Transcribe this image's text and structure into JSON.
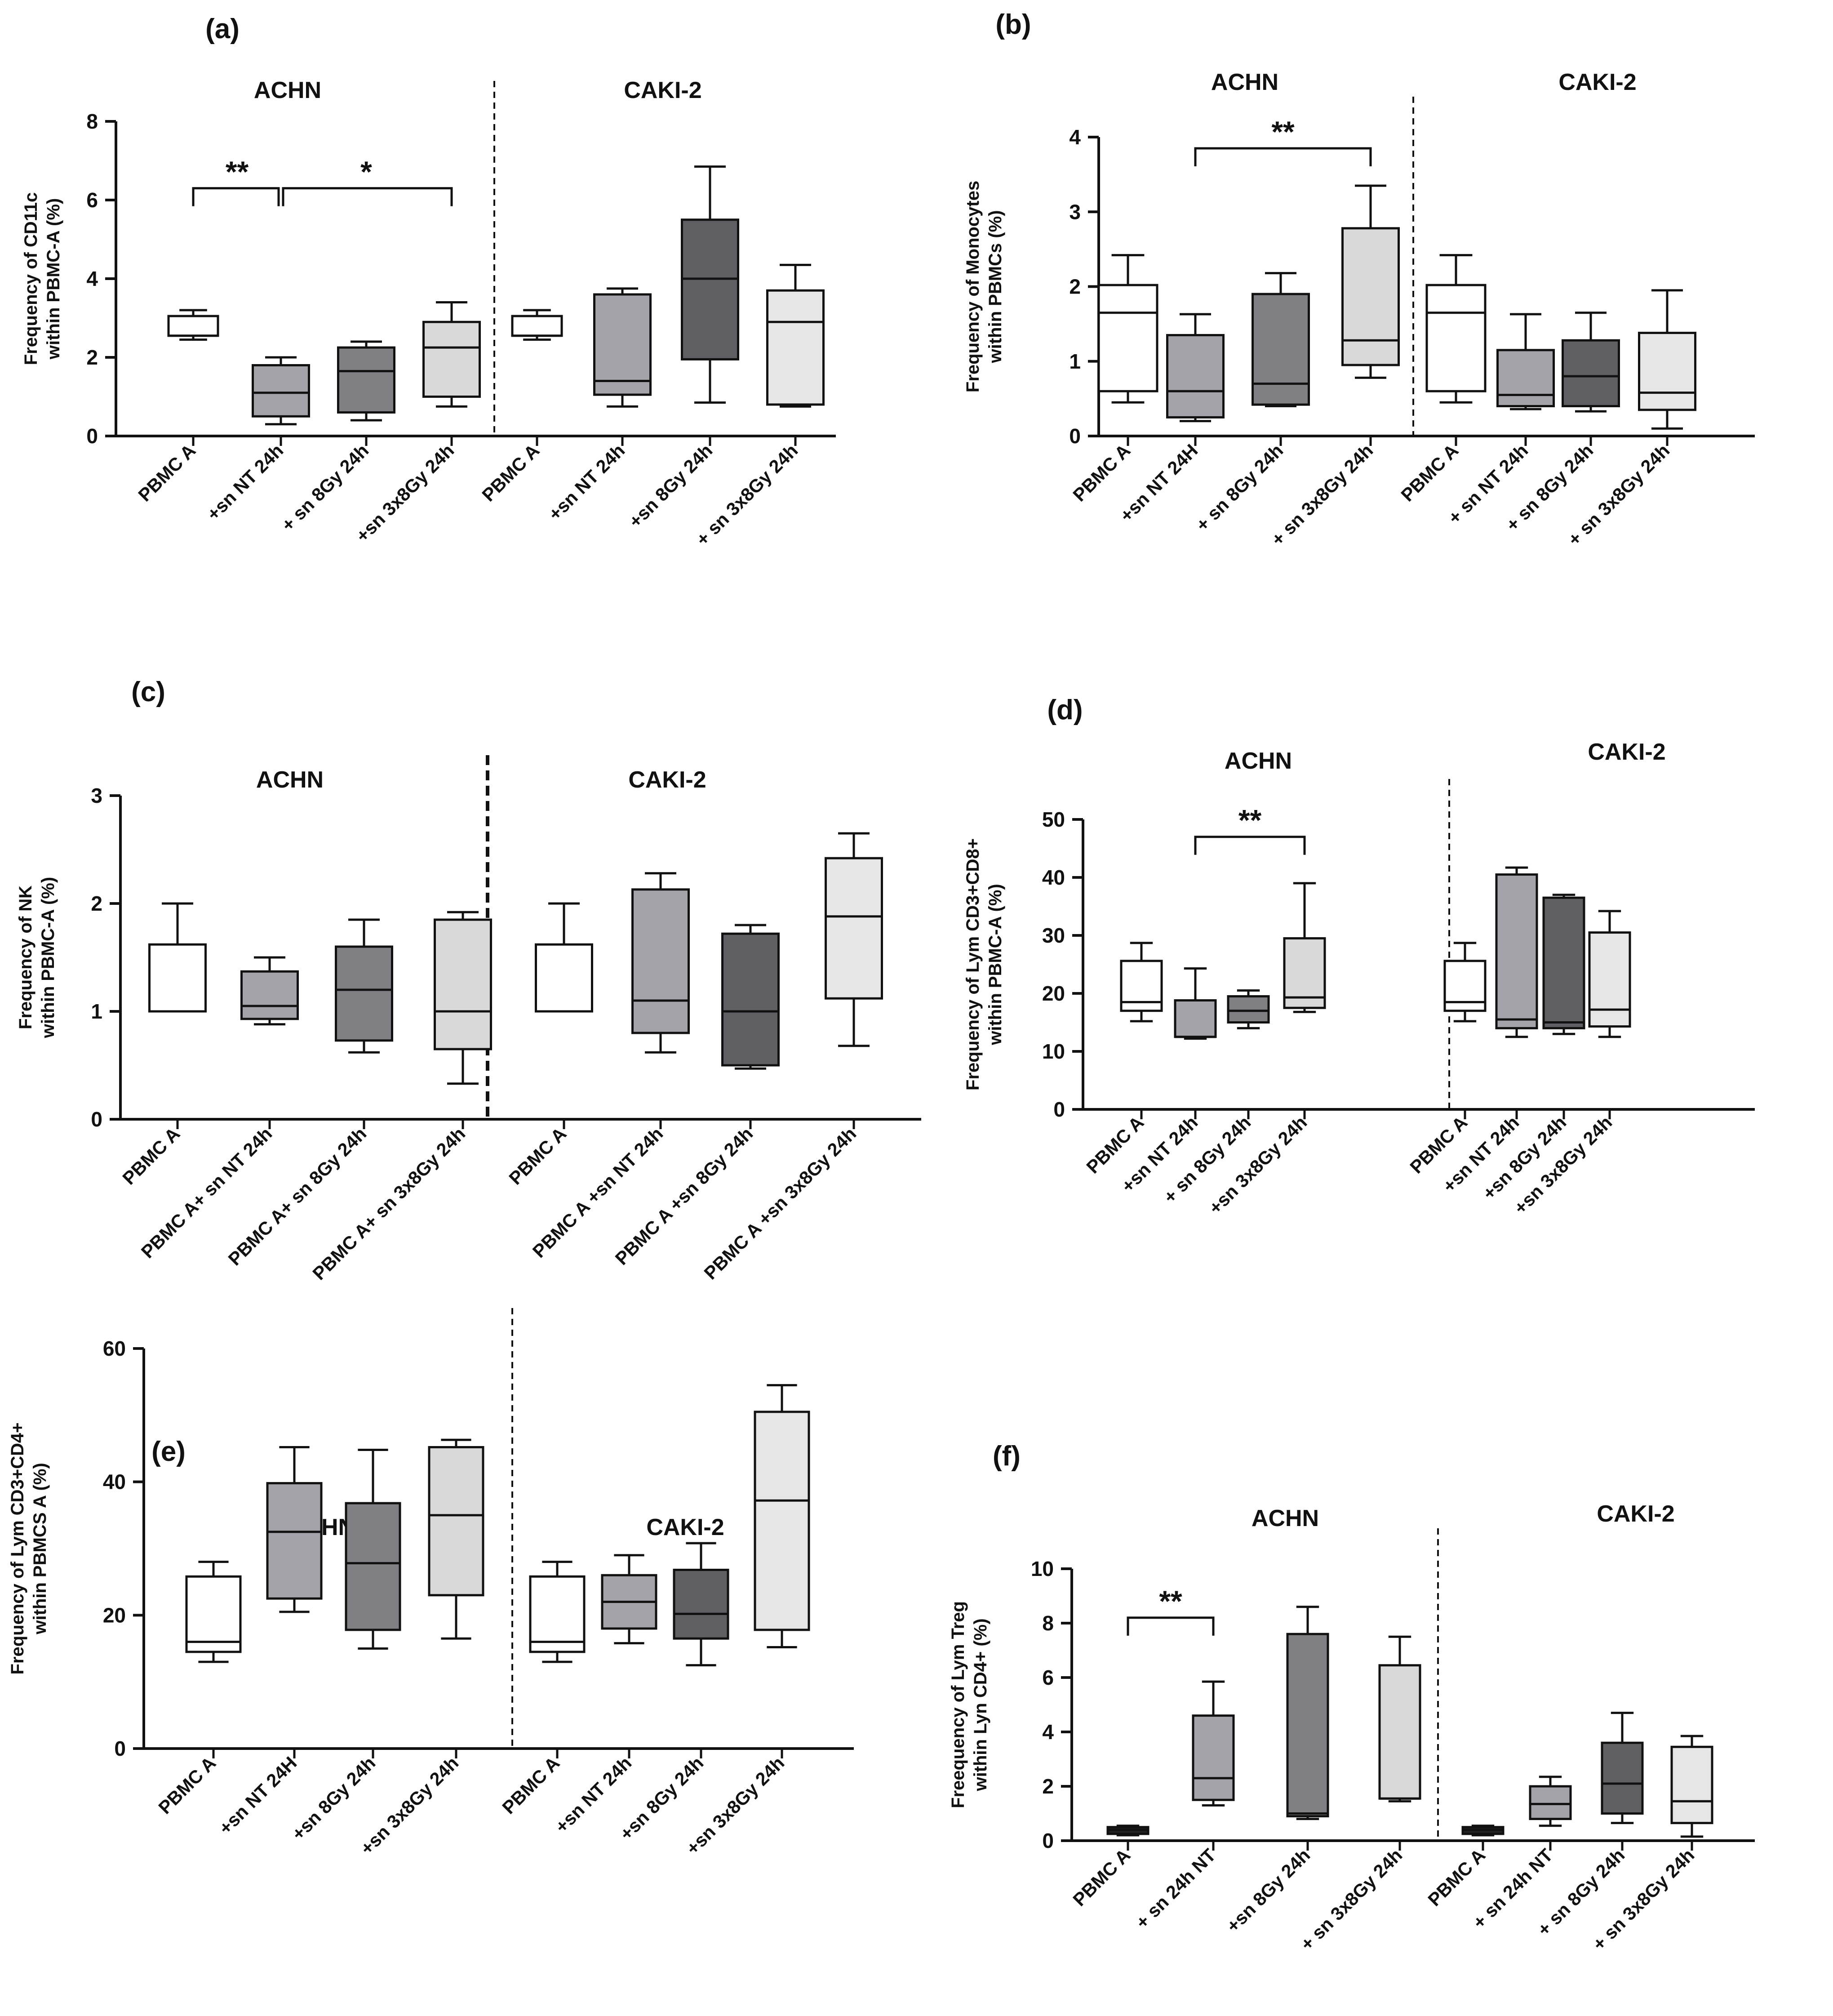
{
  "panels": [
    {
      "panel_label": "(a)",
      "chart_data": {
        "type": "box",
        "title": "",
        "ylabel": "Frequency of CD11c within PBMC-A (%)",
        "ylim": [
          0,
          8
        ],
        "yticks": [
          "0",
          "2",
          "4",
          "6",
          "8"
        ],
        "groups": [
          "ACHN",
          "CAKI-2"
        ],
        "categories": [
          "PBMC A",
          "+sn NT 24h",
          "+ sn 8Gy 24h",
          "+sn  3x8Gy 24h",
          "PBMC A",
          "+sn  NT 24h",
          "+sn 8Gy 24h",
          "+ sn 3x8Gy 24h"
        ],
        "series": [
          {
            "name": "PBMC A",
            "min": 2.45,
            "q1": 2.55,
            "median": 2.55,
            "q3": 3.05,
            "max": 3.2,
            "color": "#ffffff"
          },
          {
            "name": "+sn NT 24h",
            "min": 0.3,
            "q1": 0.5,
            "median": 1.1,
            "q3": 1.8,
            "max": 2.0,
            "color": "#a3a3a9"
          },
          {
            "name": "+ sn 8Gy 24h",
            "min": 0.4,
            "q1": 0.6,
            "median": 1.65,
            "q3": 2.25,
            "max": 2.4,
            "color": "#7f7f84"
          },
          {
            "name": "+sn  3x8Gy 24h",
            "min": 0.75,
            "q1": 1.0,
            "median": 2.25,
            "q3": 2.9,
            "max": 3.4,
            "color": "#d9d9d9"
          },
          {
            "name": "PBMC A",
            "min": 2.45,
            "q1": 2.55,
            "median": 2.55,
            "q3": 3.05,
            "max": 3.2,
            "color": "#ffffff"
          },
          {
            "name": "+sn  NT 24h",
            "min": 0.75,
            "q1": 1.05,
            "median": 1.4,
            "q3": 3.6,
            "max": 3.75,
            "color": "#a3a3a9"
          },
          {
            "name": "+sn 8Gy 24h",
            "min": 0.85,
            "q1": 1.95,
            "median": 4.0,
            "q3": 5.5,
            "max": 6.85,
            "color": "#5f5f63"
          },
          {
            "name": "+ sn 3x8Gy 24h",
            "min": 0.75,
            "q1": 0.8,
            "median": 2.9,
            "q3": 3.7,
            "max": 4.35,
            "color": "#e6e6e6"
          }
        ],
        "significance": [
          {
            "from": 0,
            "to": 1,
            "label": "**",
            "y": 6.3
          },
          {
            "from": 1,
            "to": 3,
            "label": "*",
            "y": 6.3
          }
        ]
      }
    },
    {
      "panel_label": "(b)",
      "chart_data": {
        "type": "box",
        "title": "",
        "ylabel": "Frequency of  Monocytes within PBMCs (%)",
        "ylim": [
          0,
          4
        ],
        "yticks": [
          "0",
          "1",
          "2",
          "3",
          "4"
        ],
        "groups": [
          "ACHN",
          "CAKI-2"
        ],
        "categories": [
          "PBMC A",
          "+sn NT 24H",
          "+ sn 8Gy 24h",
          "+ sn 3x8Gy 24h",
          "PBMC A",
          "+ sn NT 24h",
          "+ sn 8Gy 24h",
          "+ sn  3x8Gy 24h"
        ],
        "series": [
          {
            "name": "PBMC A",
            "min": 0.45,
            "q1": 0.6,
            "median": 1.65,
            "q3": 2.02,
            "max": 2.42,
            "color": "#ffffff"
          },
          {
            "name": "+sn NT 24H",
            "min": 0.2,
            "q1": 0.25,
            "median": 0.6,
            "q3": 1.35,
            "max": 1.63,
            "color": "#a3a3a9"
          },
          {
            "name": "+ sn 8Gy 24h",
            "min": 0.4,
            "q1": 0.42,
            "median": 0.7,
            "q3": 1.9,
            "max": 2.18,
            "color": "#7f7f84"
          },
          {
            "name": "+ sn 3x8Gy 24h",
            "min": 0.78,
            "q1": 0.95,
            "median": 1.28,
            "q3": 2.78,
            "max": 3.35,
            "color": "#d9d9d9"
          },
          {
            "name": "PBMC A",
            "min": 0.45,
            "q1": 0.6,
            "median": 1.65,
            "q3": 2.02,
            "max": 2.42,
            "color": "#ffffff"
          },
          {
            "name": "+ sn NT 24h",
            "min": 0.36,
            "q1": 0.4,
            "median": 0.55,
            "q3": 1.15,
            "max": 1.63,
            "color": "#a3a3a9"
          },
          {
            "name": "+ sn 8Gy 24h",
            "min": 0.33,
            "q1": 0.4,
            "median": 0.8,
            "q3": 1.28,
            "max": 1.65,
            "color": "#5f5f63"
          },
          {
            "name": "+ sn  3x8Gy 24h",
            "min": 0.1,
            "q1": 0.35,
            "median": 0.58,
            "q3": 1.38,
            "max": 1.95,
            "color": "#e6e6e6"
          }
        ],
        "significance": [
          {
            "from": 1,
            "to": 3,
            "label": "**",
            "y": 3.85
          }
        ]
      }
    },
    {
      "panel_label": "(c)",
      "chart_data": {
        "type": "box",
        "title": "",
        "ylabel": "Frequency of NK within  PBMC-A (%)",
        "ylim": [
          0,
          3
        ],
        "yticks": [
          "0",
          "1",
          "2",
          "3"
        ],
        "groups": [
          "ACHN",
          "CAKI-2"
        ],
        "categories": [
          "PBMC A",
          "PBMC A+ sn NT 24h",
          "PBMC A+ sn 8Gy 24h",
          "PBMC A+ sn 3x8Gy 24h",
          "PBMC A",
          "PBMC A +sn NT 24h",
          "PBMC A +sn 8Gy 24h",
          "PBMC A +sn 3x8Gy 24h"
        ],
        "series": [
          {
            "name": "PBMC A",
            "min": 1.0,
            "q1": 1.0,
            "median": 1.0,
            "q3": 1.62,
            "max": 2.0,
            "color": "#ffffff"
          },
          {
            "name": "PBMC A+ sn NT 24h",
            "min": 0.88,
            "q1": 0.93,
            "median": 1.05,
            "q3": 1.37,
            "max": 1.5,
            "color": "#a3a3a9"
          },
          {
            "name": "PBMC A+ sn 8Gy 24h",
            "min": 0.62,
            "q1": 0.73,
            "median": 1.2,
            "q3": 1.6,
            "max": 1.85,
            "color": "#7f7f84"
          },
          {
            "name": "PBMC A+ sn 3x8Gy 24h",
            "min": 0.33,
            "q1": 0.65,
            "median": 1.0,
            "q3": 1.85,
            "max": 1.92,
            "color": "#d9d9d9"
          },
          {
            "name": "PBMC A",
            "min": 1.0,
            "q1": 1.0,
            "median": 1.0,
            "q3": 1.62,
            "max": 2.0,
            "color": "#ffffff"
          },
          {
            "name": "PBMC A +sn NT 24h",
            "min": 0.62,
            "q1": 0.8,
            "median": 1.1,
            "q3": 2.13,
            "max": 2.28,
            "color": "#a3a3a9"
          },
          {
            "name": "PBMC A +sn 8Gy 24h",
            "min": 0.47,
            "q1": 0.5,
            "median": 1.0,
            "q3": 1.72,
            "max": 1.8,
            "color": "#5f5f63"
          },
          {
            "name": "PBMC A +sn 3x8Gy 24h",
            "min": 0.68,
            "q1": 1.12,
            "median": 1.88,
            "q3": 2.42,
            "max": 2.65,
            "color": "#e6e6e6"
          }
        ],
        "significance": []
      }
    },
    {
      "panel_label": "(d)",
      "chart_data": {
        "type": "box",
        "title": "",
        "ylabel": "Frequency of Lym CD3+CD8+ within  PBMC-A (%)",
        "ylim": [
          0,
          50
        ],
        "yticks": [
          "0",
          "10",
          "20",
          "30",
          "40",
          "50"
        ],
        "groups": [
          "ACHN",
          "CAKI-2"
        ],
        "categories": [
          "PBMC A",
          "+sn NT 24h",
          "+ sn 8Gy 24h",
          "+sn 3x8Gy 24h",
          "PBMC A",
          "+sn NT 24h",
          "+sn 8Gy 24h",
          "+sn 3x8Gy 24h"
        ],
        "series": [
          {
            "name": "PBMC A",
            "min": 15.2,
            "q1": 17.0,
            "median": 18.5,
            "q3": 25.6,
            "max": 28.7,
            "color": "#ffffff"
          },
          {
            "name": "+sn NT 24h",
            "min": 12.2,
            "q1": 12.5,
            "median": 12.5,
            "q3": 18.8,
            "max": 24.3,
            "color": "#a3a3a9"
          },
          {
            "name": "+ sn 8Gy 24h",
            "min": 14.0,
            "q1": 15.0,
            "median": 17.0,
            "q3": 19.5,
            "max": 20.5,
            "color": "#7f7f84"
          },
          {
            "name": "+sn 3x8Gy 24h",
            "min": 16.8,
            "q1": 17.5,
            "median": 19.3,
            "q3": 29.5,
            "max": 39.0,
            "color": "#d9d9d9"
          },
          {
            "name": "PBMC A",
            "min": 15.2,
            "q1": 17.0,
            "median": 18.5,
            "q3": 25.6,
            "max": 28.7,
            "color": "#ffffff"
          },
          {
            "name": "+sn NT 24h",
            "min": 12.5,
            "q1": 14.0,
            "median": 15.5,
            "q3": 40.5,
            "max": 41.7,
            "color": "#a3a3a9"
          },
          {
            "name": "+sn 8Gy 24h",
            "min": 13.0,
            "q1": 14.0,
            "median": 15.0,
            "q3": 36.5,
            "max": 37.0,
            "color": "#5f5f63"
          },
          {
            "name": "+sn 3x8Gy 24h",
            "min": 12.5,
            "q1": 14.3,
            "median": 17.2,
            "q3": 30.5,
            "max": 34.2,
            "color": "#e6e6e6"
          }
        ],
        "significance": [
          {
            "from": 1,
            "to": 3,
            "label": "**",
            "y": 47.0
          }
        ]
      }
    },
    {
      "panel_label": "(e)",
      "chart_data": {
        "type": "box",
        "title": "",
        "ylabel": "Frequency  of Lym CD3+CD4+ within PBMCS A (%)",
        "ylim": [
          0,
          60
        ],
        "yticks": [
          "0",
          "20",
          "40",
          "60"
        ],
        "groups": [
          "ACHN",
          "CAKI-2"
        ],
        "categories": [
          "PBMC A",
          "+sn NT 24H",
          "+sn 8Gy 24h",
          "+sn 3x8Gy 24h",
          "PBMC A",
          "+sn NT 24h",
          "+sn 8Gy 24h",
          "+sn 3x8Gy 24h"
        ],
        "series": [
          {
            "name": "PBMC A",
            "min": 13.0,
            "q1": 14.5,
            "median": 16.0,
            "q3": 25.8,
            "max": 28.0,
            "color": "#ffffff"
          },
          {
            "name": "+sn NT 24H",
            "min": 20.5,
            "q1": 22.5,
            "median": 32.5,
            "q3": 39.8,
            "max": 45.2,
            "color": "#a3a3a9"
          },
          {
            "name": "+sn 8Gy 24h",
            "min": 15.0,
            "q1": 17.8,
            "median": 27.8,
            "q3": 36.8,
            "max": 44.8,
            "color": "#7f7f84"
          },
          {
            "name": "+sn 3x8Gy 24h",
            "min": 16.5,
            "q1": 23.0,
            "median": 35.0,
            "q3": 45.2,
            "max": 46.3,
            "color": "#d9d9d9"
          },
          {
            "name": "PBMC A",
            "min": 13.0,
            "q1": 14.5,
            "median": 16.0,
            "q3": 25.8,
            "max": 28.0,
            "color": "#ffffff"
          },
          {
            "name": "+sn NT 24h",
            "min": 15.8,
            "q1": 18.0,
            "median": 22.0,
            "q3": 26.0,
            "max": 29.0,
            "color": "#a3a3a9"
          },
          {
            "name": "+sn 8Gy 24h",
            "min": 12.5,
            "q1": 16.5,
            "median": 20.2,
            "q3": 26.8,
            "max": 30.8,
            "color": "#5f5f63"
          },
          {
            "name": "+sn 3x8Gy 24h",
            "min": 15.2,
            "q1": 17.8,
            "median": 37.2,
            "q3": 50.5,
            "max": 54.5,
            "color": "#e6e6e6"
          }
        ],
        "significance": []
      }
    },
    {
      "panel_label": "(f)",
      "chart_data": {
        "type": "box",
        "title": "",
        "ylabel": "Freequency of  Lym Treg within Lyn CD4+ (%)",
        "ylim": [
          0,
          10
        ],
        "yticks": [
          "0",
          "2",
          "4",
          "6",
          "8",
          "10"
        ],
        "groups": [
          "ACHN",
          "CAKI-2"
        ],
        "categories": [
          "PBMC A",
          "+ sn 24h NT",
          "+sn 8Gy 24h",
          "+ sn 3x8Gy 24h",
          "PBMC A",
          "+ sn 24h NT",
          "+ sn 8Gy 24h",
          "+ sn 3x8Gy 24h"
        ],
        "series": [
          {
            "name": "PBMC A",
            "min": 0.2,
            "q1": 0.25,
            "median": 0.4,
            "q3": 0.5,
            "max": 0.55,
            "color": "#222222"
          },
          {
            "name": "+ sn 24h NT",
            "min": 1.3,
            "q1": 1.5,
            "median": 2.3,
            "q3": 4.6,
            "max": 5.85,
            "color": "#a3a3a9"
          },
          {
            "name": "+sn 8Gy 24h",
            "min": 0.8,
            "q1": 0.9,
            "median": 1.0,
            "q3": 7.6,
            "max": 8.6,
            "color": "#7f7f84"
          },
          {
            "name": "+ sn 3x8Gy 24h",
            "min": 1.45,
            "q1": 1.55,
            "median": 1.55,
            "q3": 6.45,
            "max": 7.5,
            "color": "#d9d9d9"
          },
          {
            "name": "PBMC A",
            "min": 0.2,
            "q1": 0.25,
            "median": 0.4,
            "q3": 0.5,
            "max": 0.55,
            "color": "#222222"
          },
          {
            "name": "+ sn 24h NT",
            "min": 0.55,
            "q1": 0.8,
            "median": 1.35,
            "q3": 2.0,
            "max": 2.35,
            "color": "#a3a3a9"
          },
          {
            "name": "+ sn 8Gy 24h",
            "min": 0.65,
            "q1": 1.0,
            "median": 2.1,
            "q3": 3.6,
            "max": 4.7,
            "color": "#5f5f63"
          },
          {
            "name": "+ sn 3x8Gy 24h",
            "min": 0.15,
            "q1": 0.65,
            "median": 1.45,
            "q3": 3.45,
            "max": 3.85,
            "color": "#e6e6e6"
          }
        ],
        "significance": [
          {
            "from": 0,
            "to": 1,
            "label": "**",
            "y": 8.2
          }
        ]
      }
    }
  ]
}
